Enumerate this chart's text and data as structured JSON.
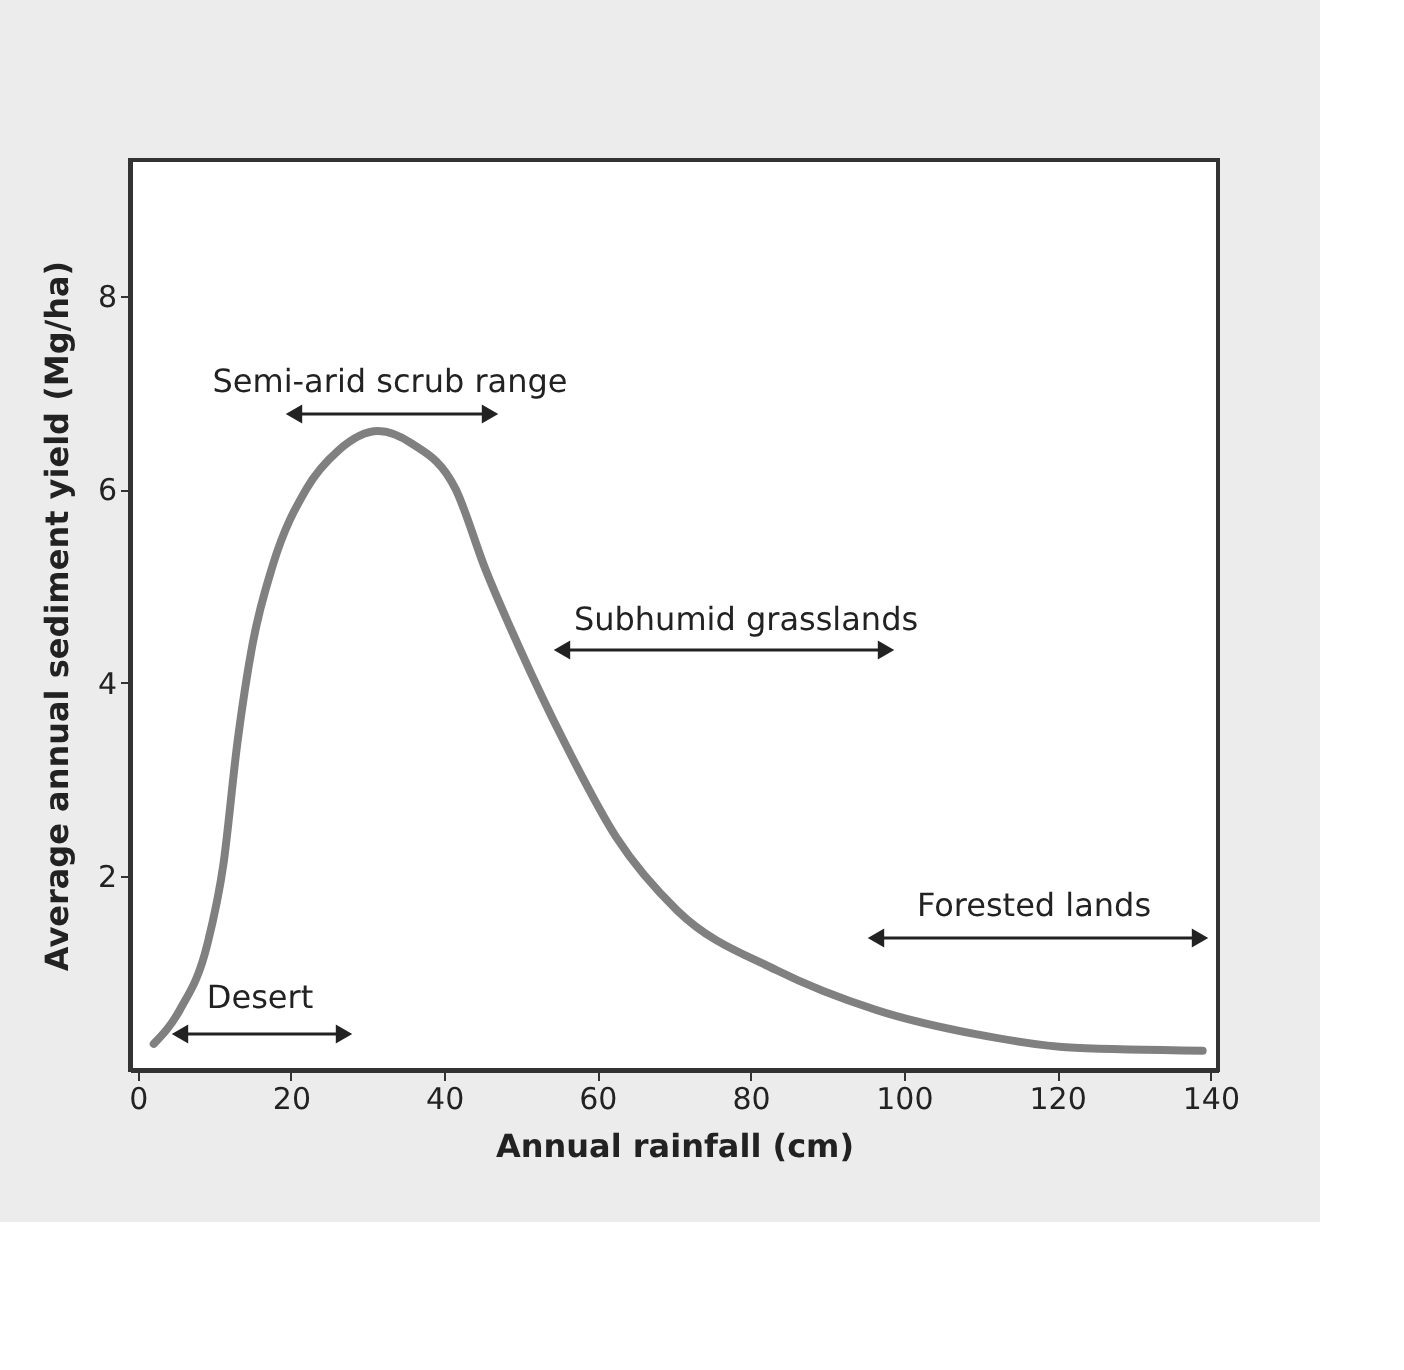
{
  "chart_data": {
    "type": "line",
    "xlabel": "Annual rainfall (cm)",
    "ylabel": "Average annual sediment yield (Mg/ha)",
    "xlim": [
      -1,
      141
    ],
    "ylim": [
      0,
      9.4
    ],
    "xticks": [
      0,
      20,
      40,
      60,
      80,
      100,
      120,
      140
    ],
    "yticks": [
      2,
      4,
      6,
      8
    ],
    "grid": false,
    "line_style": "solid",
    "marker": "none",
    "series": [
      {
        "color": "#808080",
        "x": [
          2.1,
          5.5,
          9.1,
          11.2,
          13,
          15,
          17.7,
          22,
          26.2,
          31.4,
          35.8,
          41.5,
          45.4,
          49.6,
          55.8,
          62.5,
          70.4,
          83.4,
          96.4,
          109.4,
          122.3,
          139
        ],
        "values": [
          0.27,
          0.62,
          1.3,
          2.13,
          3.37,
          4.4,
          5.23,
          6.0,
          6.4,
          6.6,
          6.47,
          6.0,
          5.17,
          4.4,
          3.37,
          2.4,
          1.65,
          1.03,
          0.62,
          0.37,
          0.23,
          0.2
        ]
      }
    ],
    "annotations": [
      "Semi-arid scrub range",
      "Desert",
      "Subhumid grasslands",
      "Forested lands"
    ]
  }
}
